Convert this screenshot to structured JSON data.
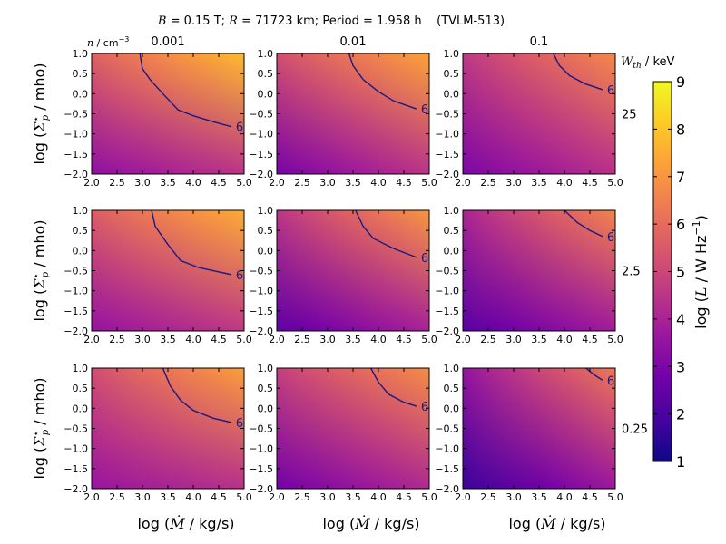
{
  "chart_data": {
    "type": "heatmap",
    "title_parts": {
      "b_symbol": "B",
      "b_text": " = 0.15 T; ",
      "r_symbol": "R",
      "r_text": " = 71723 km; Period = 1.958 h    (TVLM-513)"
    },
    "column_header": {
      "symbol": "n",
      "unit": " / cm",
      "sup": "−3"
    },
    "row_header": {
      "symbol": "W",
      "sub": "th",
      "unit": " / keV"
    },
    "columns": [
      "0.001",
      "0.01",
      "0.1"
    ],
    "rows": [
      "25",
      "2.5",
      "0.25"
    ],
    "x_ticks": [
      "2.0",
      "2.5",
      "3.0",
      "3.5",
      "4.0",
      "4.5",
      "5.0"
    ],
    "y_ticks": [
      "1.0",
      "0.5",
      "0.0",
      "−0.5",
      "−1.0",
      "−1.5",
      "−2.0"
    ],
    "xlim": [
      2.0,
      5.0
    ],
    "ylim": [
      -2.0,
      1.0
    ],
    "xlabel_parts": {
      "pre": "log (",
      "symbol": "Ṁ",
      "post": " / kg/s)"
    },
    "ylabel_parts": {
      "pre": "log (",
      "symbol": "Σ",
      "sup": "⋆",
      "sub": "p",
      "post": " / mho)"
    },
    "colorbar": {
      "ticks": [
        "9",
        "8",
        "7",
        "6",
        "5",
        "4",
        "3",
        "2",
        "1"
      ],
      "range": [
        1,
        9
      ],
      "label_parts": {
        "pre": "log (",
        "symbol": "L",
        "post": " / W Hz",
        "sup": "−1",
        "end": ")"
      },
      "colormap": "plasma"
    },
    "contour_level": "6",
    "panels": [
      {
        "row": 0,
        "col": 0,
        "corner_values": {
          "bottom_left": 3.4,
          "top_left": 5.7,
          "bottom_right": 4.5,
          "top_right": 7.8
        },
        "contour": [
          [
            2.95,
            1.0
          ],
          [
            3.0,
            0.62
          ],
          [
            3.15,
            0.35
          ],
          [
            3.4,
            0.0
          ],
          [
            3.7,
            -0.4
          ],
          [
            4.0,
            -0.55
          ],
          [
            4.4,
            -0.7
          ],
          [
            4.75,
            -0.82
          ]
        ]
      },
      {
        "row": 0,
        "col": 1,
        "corner_values": {
          "bottom_left": 2.9,
          "top_left": 5.2,
          "bottom_right": 4.5,
          "top_right": 7.3
        },
        "contour": [
          [
            3.42,
            1.0
          ],
          [
            3.5,
            0.7
          ],
          [
            3.7,
            0.35
          ],
          [
            4.0,
            0.05
          ],
          [
            4.3,
            -0.18
          ],
          [
            4.75,
            -0.38
          ]
        ]
      },
      {
        "row": 0,
        "col": 2,
        "corner_values": {
          "bottom_left": 3.0,
          "top_left": 4.6,
          "bottom_right": 4.4,
          "top_right": 6.7
        },
        "contour": [
          [
            3.78,
            1.0
          ],
          [
            3.9,
            0.7
          ],
          [
            4.1,
            0.45
          ],
          [
            4.4,
            0.25
          ],
          [
            4.75,
            0.1
          ]
        ]
      },
      {
        "row": 1,
        "col": 0,
        "corner_values": {
          "bottom_left": 3.5,
          "top_left": 5.6,
          "bottom_right": 4.6,
          "top_right": 7.5
        },
        "contour": [
          [
            3.18,
            1.0
          ],
          [
            3.25,
            0.6
          ],
          [
            3.5,
            0.15
          ],
          [
            3.75,
            -0.25
          ],
          [
            4.1,
            -0.42
          ],
          [
            4.75,
            -0.6
          ]
        ]
      },
      {
        "row": 1,
        "col": 1,
        "corner_values": {
          "bottom_left": 2.4,
          "top_left": 4.5,
          "bottom_right": 4.0,
          "top_right": 7.0
        },
        "contour": [
          [
            3.55,
            1.0
          ],
          [
            3.7,
            0.6
          ],
          [
            3.9,
            0.3
          ],
          [
            4.3,
            0.05
          ],
          [
            4.75,
            -0.17
          ]
        ]
      },
      {
        "row": 1,
        "col": 2,
        "corner_values": {
          "bottom_left": 2.3,
          "top_left": 4.0,
          "bottom_right": 3.8,
          "top_right": 6.6
        },
        "contour": [
          [
            4.0,
            1.0
          ],
          [
            4.25,
            0.7
          ],
          [
            4.5,
            0.5
          ],
          [
            4.75,
            0.35
          ]
        ]
      },
      {
        "row": 2,
        "col": 0,
        "corner_values": {
          "bottom_left": 3.6,
          "top_left": 5.2,
          "bottom_right": 4.4,
          "top_right": 7.2
        },
        "contour": [
          [
            3.4,
            1.0
          ],
          [
            3.55,
            0.55
          ],
          [
            3.75,
            0.2
          ],
          [
            4.0,
            -0.05
          ],
          [
            4.4,
            -0.25
          ],
          [
            4.75,
            -0.35
          ]
        ]
      },
      {
        "row": 2,
        "col": 1,
        "corner_values": {
          "bottom_left": 2.8,
          "top_left": 4.8,
          "bottom_right": 4.2,
          "top_right": 6.8
        },
        "contour": [
          [
            3.85,
            1.0
          ],
          [
            4.0,
            0.65
          ],
          [
            4.2,
            0.35
          ],
          [
            4.5,
            0.15
          ],
          [
            4.75,
            0.05
          ]
        ]
      },
      {
        "row": 2,
        "col": 2,
        "corner_values": {
          "bottom_left": 1.7,
          "top_left": 3.5,
          "bottom_right": 3.7,
          "top_right": 6.3
        },
        "contour": [
          [
            4.42,
            1.0
          ],
          [
            4.6,
            0.82
          ],
          [
            4.75,
            0.7
          ]
        ]
      }
    ]
  }
}
